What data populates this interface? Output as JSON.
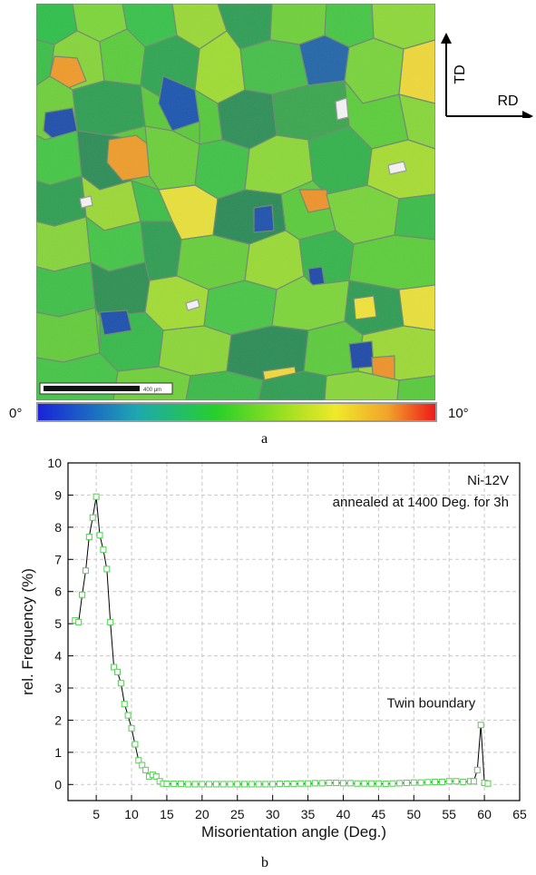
{
  "panel_a": {
    "label": "a",
    "scale_bar_text": "400 µm",
    "direction_td": "TD",
    "direction_rd": "RD",
    "colorbar": {
      "min_label": "0°",
      "max_label": "10°"
    }
  },
  "panel_b": {
    "label": "b"
  },
  "chart_data": {
    "type": "line",
    "xlabel": "Misorientation angle (Deg.)",
    "ylabel": "rel. Frequency (%)",
    "xlim": [
      1,
      65
    ],
    "ylim": [
      -0.5,
      10
    ],
    "xticks": [
      5,
      10,
      15,
      20,
      25,
      30,
      35,
      40,
      45,
      50,
      55,
      60,
      65
    ],
    "yticks": [
      0,
      1,
      2,
      3,
      4,
      5,
      6,
      7,
      8,
      9,
      10
    ],
    "annotations": [
      "Ni-12V",
      "annealed at 1400 Deg. for 3h",
      "Twin boundary"
    ],
    "grid": true,
    "series": [
      {
        "color": "#5fd35f",
        "x": [
          2.0,
          2.5,
          3.0,
          3.5,
          4.0,
          4.5,
          5.0,
          5.5,
          6.0,
          6.5,
          7.0,
          7.5,
          8.0,
          8.5,
          9.0,
          9.5,
          10.0,
          10.5,
          11.0,
          11.5,
          12.0,
          12.5,
          13.0,
          13.5,
          14.0,
          14.5,
          15.0,
          16,
          17,
          18,
          19,
          20,
          21,
          22,
          23,
          24,
          25,
          26,
          27,
          28,
          29,
          30,
          31,
          32,
          33,
          34,
          35,
          36,
          37,
          38,
          39,
          40,
          41,
          42,
          43,
          44,
          45,
          46,
          47,
          48,
          49,
          50,
          51,
          52,
          53,
          54,
          55,
          56,
          57,
          58,
          58.5,
          59,
          59.5,
          60,
          60.5
        ],
        "y": [
          5.1,
          5.05,
          5.9,
          6.65,
          7.7,
          8.3,
          8.95,
          7.75,
          7.3,
          6.7,
          5.05,
          3.65,
          3.5,
          3.15,
          2.5,
          2.15,
          1.75,
          1.25,
          0.75,
          0.6,
          0.45,
          0.25,
          0.3,
          0.25,
          0.1,
          0.03,
          0.02,
          0.02,
          0.02,
          0.01,
          0.01,
          0.01,
          0.01,
          0.01,
          0.01,
          0.01,
          0.01,
          0.01,
          0.01,
          0.01,
          0.01,
          0.01,
          0.02,
          0.02,
          0.02,
          0.03,
          0.03,
          0.04,
          0.04,
          0.05,
          0.05,
          0.04,
          0.04,
          0.03,
          0.03,
          0.03,
          0.03,
          0.02,
          0.03,
          0.04,
          0.05,
          0.06,
          0.06,
          0.07,
          0.08,
          0.08,
          0.1,
          0.1,
          0.08,
          0.1,
          0.1,
          0.45,
          1.85,
          0.05,
          0.03
        ]
      }
    ]
  }
}
